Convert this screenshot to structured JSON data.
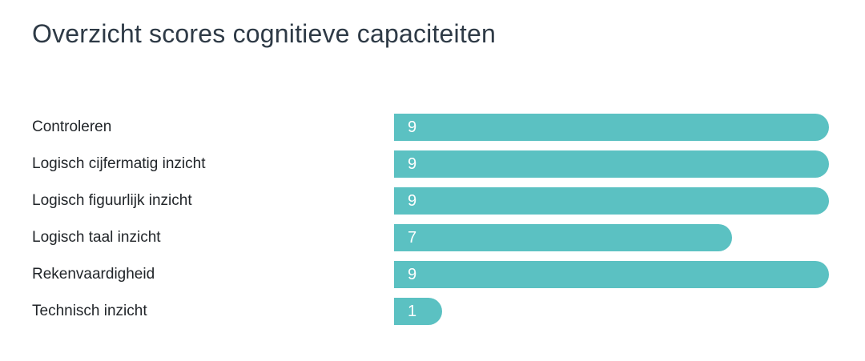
{
  "title": "Overzicht scores cognitieve capaciteiten",
  "colors": {
    "background": "#ffffff",
    "bar_fill": "#5bc1c2",
    "title_text": "#2e3a46",
    "label_text": "#212529",
    "value_text": "#ffffff"
  },
  "chart_data": {
    "type": "bar",
    "orientation": "horizontal",
    "title": "Overzicht scores cognitieve capaciteiten",
    "categories": [
      "Controleren",
      "Logisch cijfermatig inzicht",
      "Logisch figuurlijk inzicht",
      "Logisch taal inzicht",
      "Rekenvaardigheid",
      "Technisch inzicht"
    ],
    "values": [
      9,
      9,
      9,
      7,
      9,
      1
    ],
    "value_labels": [
      "9",
      "9",
      "9",
      "7",
      "9",
      "1"
    ],
    "xlim": [
      0,
      9
    ],
    "grid": false,
    "legend": false,
    "bar_color": "#5bc1c2",
    "value_label_position": "inside-left"
  }
}
